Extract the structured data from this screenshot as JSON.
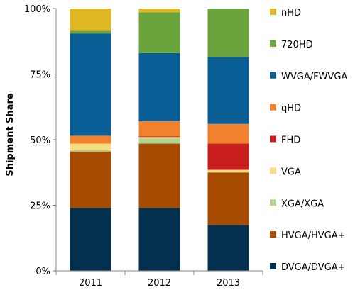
{
  "chart_data": {
    "type": "bar",
    "stacked": true,
    "categories": [
      "2011",
      "2012",
      "2013"
    ],
    "ylabel": "Shipment Share",
    "xlabel": "",
    "ylim": [
      0,
      100
    ],
    "yticks": [
      "0%",
      "25%",
      "50%",
      "75%",
      "100%"
    ],
    "legend_position": "right",
    "series": [
      {
        "name": "DVGA/DVGA+",
        "color": "#03304F",
        "values": [
          24,
          24,
          17.5
        ]
      },
      {
        "name": "HVGA/HVGA+",
        "color": "#A64B00",
        "values": [
          21.5,
          24.5,
          20
        ]
      },
      {
        "name": "XGA/XGA",
        "color": "#B3D38F",
        "values": [
          0.5,
          2,
          0
        ]
      },
      {
        "name": "VGA",
        "color": "#F5DD80",
        "values": [
          2.5,
          0.5,
          1
        ]
      },
      {
        "name": "FHD",
        "color": "#C81E1E",
        "values": [
          0,
          0.3,
          10
        ]
      },
      {
        "name": "qHD",
        "color": "#F2822E",
        "values": [
          3,
          5.7,
          7.5
        ]
      },
      {
        "name": "WVGA/FWVGA",
        "color": "#0A5E96",
        "values": [
          39,
          26,
          25.5
        ]
      },
      {
        "name": "720HD",
        "color": "#6BA43C",
        "values": [
          1,
          15.5,
          18.5
        ]
      },
      {
        "name": "nHD",
        "color": "#DDB824",
        "values": [
          8.5,
          1.5,
          0
        ]
      }
    ]
  }
}
